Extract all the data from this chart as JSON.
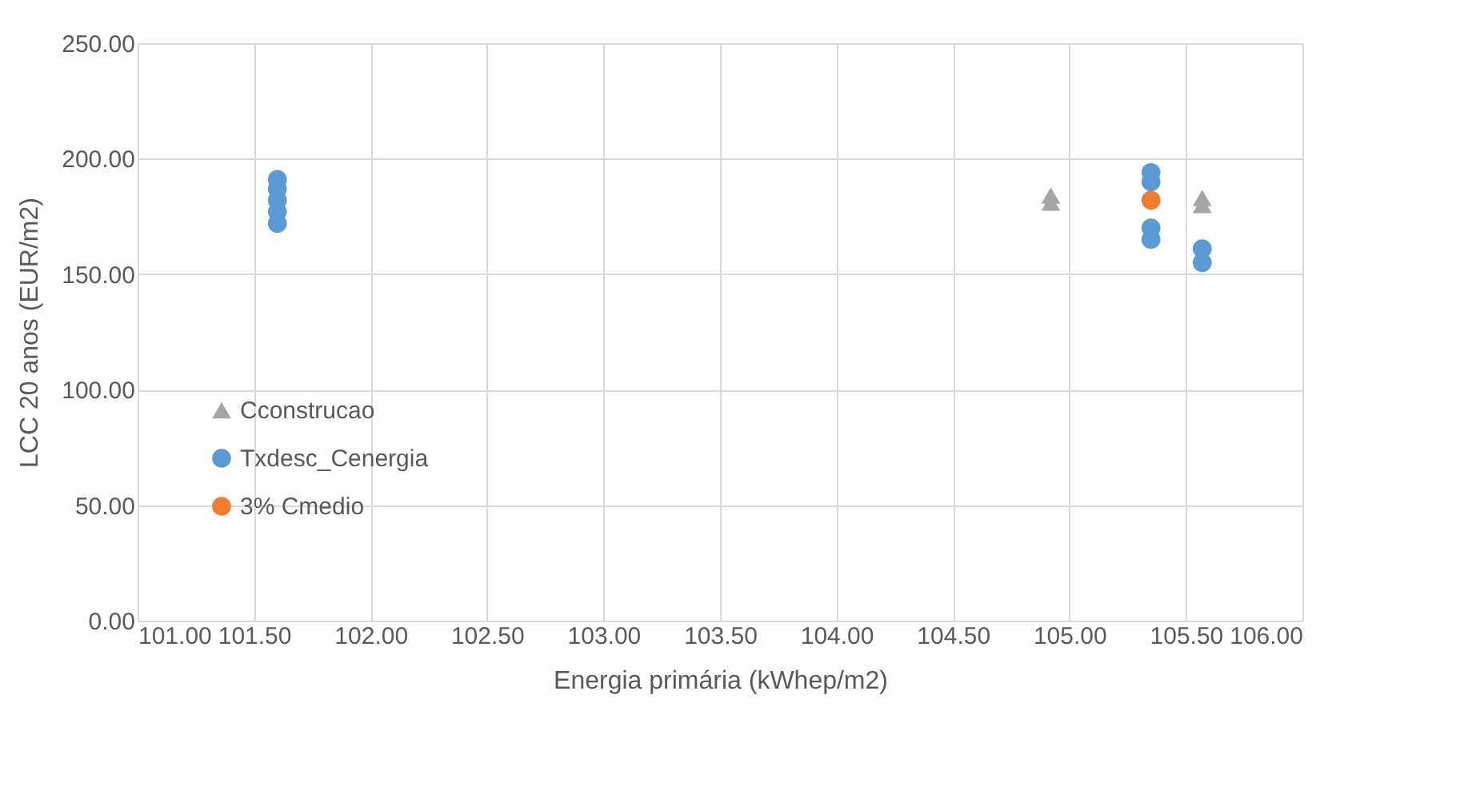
{
  "chart_data": {
    "type": "scatter",
    "xlabel": "Energia primária (kWhep/m2)",
    "ylabel": "LCC 20 anos (EUR/m2)",
    "xlim": [
      101,
      106
    ],
    "ylim": [
      0,
      250
    ],
    "xticks": [
      {
        "value": 101,
        "label": "101.00"
      },
      {
        "value": 101.5,
        "label": "101.50"
      },
      {
        "value": 102,
        "label": "102.00"
      },
      {
        "value": 102.5,
        "label": "102.50"
      },
      {
        "value": 103,
        "label": "103.00"
      },
      {
        "value": 103.5,
        "label": "103.50"
      },
      {
        "value": 104,
        "label": "104.00"
      },
      {
        "value": 104.5,
        "label": "104.50"
      },
      {
        "value": 105,
        "label": "105.00"
      },
      {
        "value": 105.5,
        "label": "105.50"
      },
      {
        "value": 106,
        "label": "106.00"
      }
    ],
    "yticks": [
      {
        "value": 0,
        "label": "0.00"
      },
      {
        "value": 50,
        "label": "50.00"
      },
      {
        "value": 100,
        "label": "100.00"
      },
      {
        "value": 150,
        "label": "150.00"
      },
      {
        "value": 200,
        "label": "200.00"
      },
      {
        "value": 250,
        "label": "250.00"
      }
    ],
    "grid": true,
    "legend": "left",
    "series": [
      {
        "name": "Cconstrucao",
        "color": "#a5a5a5",
        "marker": "triangle",
        "x": [
          104.92,
          104.92,
          105.57,
          105.57
        ],
        "values": [
          181,
          184,
          180,
          183
        ]
      },
      {
        "name": "Txdesc_Cenergia",
        "color": "#5b9bd5",
        "marker": "circle",
        "x": [
          101.6,
          101.6,
          101.6,
          101.6,
          101.6,
          105.35,
          105.35,
          105.35,
          105.35,
          105.57,
          105.57
        ],
        "values": [
          172,
          177,
          182,
          187,
          191,
          194,
          190,
          170,
          165,
          155,
          161
        ]
      },
      {
        "name": "3% Cmedio",
        "color": "#ed7d31",
        "marker": "circle",
        "x": [
          105.35
        ],
        "values": [
          182
        ]
      }
    ]
  }
}
